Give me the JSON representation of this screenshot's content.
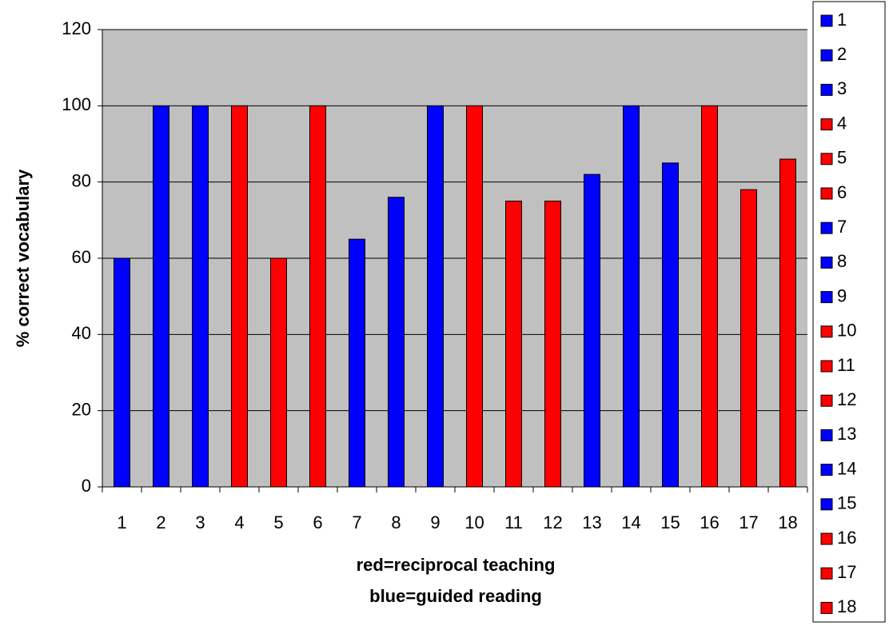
{
  "chart_data": {
    "type": "bar",
    "ylabel": "% correct vocabulary",
    "xlabel_lines": [
      "red=reciprocal teaching",
      "blue=guided reading"
    ],
    "categories": [
      "1",
      "2",
      "3",
      "4",
      "5",
      "6",
      "7",
      "8",
      "9",
      "10",
      "11",
      "12",
      "13",
      "14",
      "15",
      "16",
      "17",
      "18"
    ],
    "values": [
      60,
      100,
      100,
      100,
      60,
      100,
      65,
      76,
      100,
      100,
      75,
      75,
      82,
      100,
      85,
      100,
      78,
      86
    ],
    "colors": [
      "#0000ff",
      "#0000ff",
      "#0000ff",
      "#ff0000",
      "#ff0000",
      "#ff0000",
      "#0000ff",
      "#0000ff",
      "#0000ff",
      "#ff0000",
      "#ff0000",
      "#ff0000",
      "#0000ff",
      "#0000ff",
      "#0000ff",
      "#ff0000",
      "#ff0000",
      "#ff0000"
    ],
    "ylim": [
      0,
      120
    ],
    "yticks": [
      0,
      20,
      40,
      60,
      80,
      100,
      120
    ],
    "grid": true,
    "legend": "right"
  }
}
